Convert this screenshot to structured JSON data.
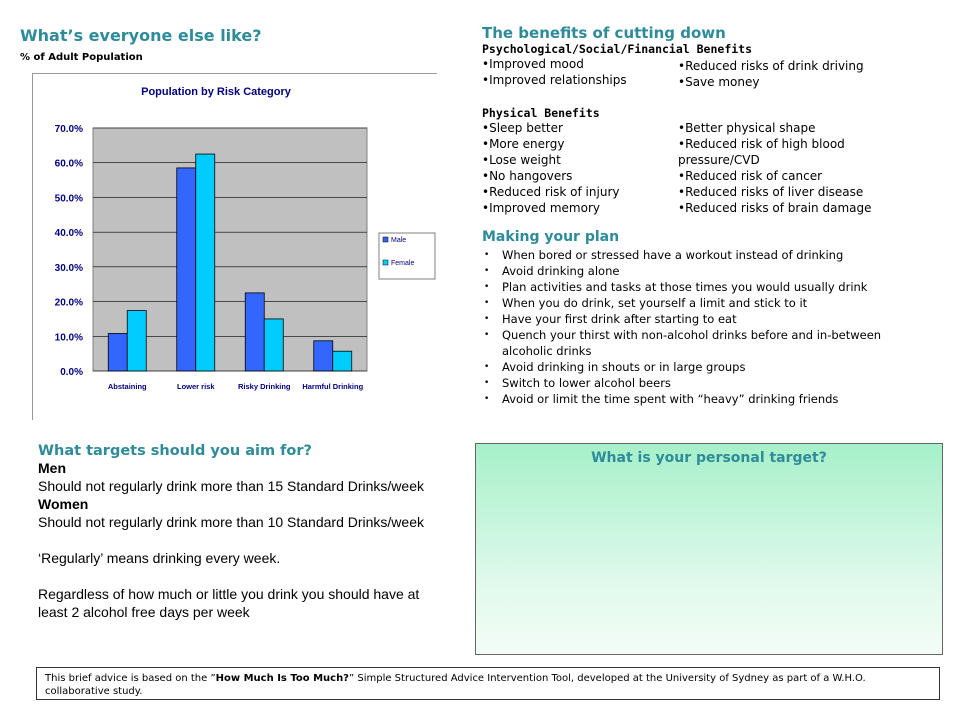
{
  "left": {
    "title": "What’s everyone else like?",
    "subtitle": "% of Adult Population"
  },
  "chart_data": {
    "type": "bar",
    "title": "Population by Risk Category",
    "categories": [
      "Abstaining",
      "Lower risk",
      "Risky Drinking",
      "Harmful Drinking"
    ],
    "series": [
      {
        "name": "Male",
        "values": [
          10.8,
          58.5,
          22.5,
          8.7
        ],
        "color": "#3366FF"
      },
      {
        "name": "Female",
        "values": [
          17.4,
          62.5,
          15.0,
          5.7
        ],
        "color": "#00CCFF"
      }
    ],
    "ylim": [
      0,
      70
    ],
    "yticks": [
      "0.0%",
      "10.0%",
      "20.0%",
      "30.0%",
      "40.0%",
      "50.0%",
      "60.0%",
      "70.0%"
    ],
    "xlabel": "",
    "ylabel": "",
    "grid": true,
    "legend": "right",
    "plot_bg": "#C0C0C0"
  },
  "benefits": {
    "title": "The benefits of cutting down",
    "psych_header": "Psychological/Social/Financial  Benefits",
    "psych_left": [
      "Improved mood",
      "Improved relationships"
    ],
    "psych_right": [
      "Reduced risks of drink driving",
      "Save money"
    ],
    "phys_header": "Physical Benefits",
    "phys_left": [
      "Sleep better",
      "More energy",
      "Lose weight",
      "No hangovers",
      "Reduced risk of injury",
      "Improved memory"
    ],
    "phys_right": [
      "Better physical shape",
      "Reduced risk of high blood pressure/CVD",
      "Reduced risk of cancer",
      "Reduced risks of liver disease",
      "Reduced risks of brain damage"
    ]
  },
  "plan": {
    "title": "Making your plan",
    "items": [
      "When bored or stressed have a workout instead of drinking",
      "Avoid drinking alone",
      "Plan activities and tasks at those times you would usually drink",
      "When you do drink, set yourself a limit and stick to it",
      "Have your first drink after starting to eat",
      "Quench your thirst with non-alcohol drinks before and in-between alcoholic drinks",
      "Avoid drinking in shouts or in large groups",
      "Switch to lower alcohol beers",
      "Avoid or limit the time spent with “heavy” drinking friends"
    ]
  },
  "targets": {
    "title": "What targets should you aim for?",
    "men_label": "Men",
    "men_text": "Should not regularly drink more than 15 Standard Drinks/week",
    "women_label": "Women",
    "women_text": "Should not regularly drink more than 10 Standard Drinks/week",
    "regularly_text": "‘Regularly’ means drinking every week.",
    "free_days_text": "Regardless of how much or little you drink you should have at least 2 alcohol free days per week"
  },
  "personal": {
    "title": "What is your personal target?"
  },
  "footer": {
    "prefix": "This brief advice is based on the ”",
    "tool_name": "How Much Is Too Much?",
    "suffix": "” Simple Structured Advice Intervention Tool, developed at the University of Sydney as part of a W.H.O. collaborative study."
  }
}
